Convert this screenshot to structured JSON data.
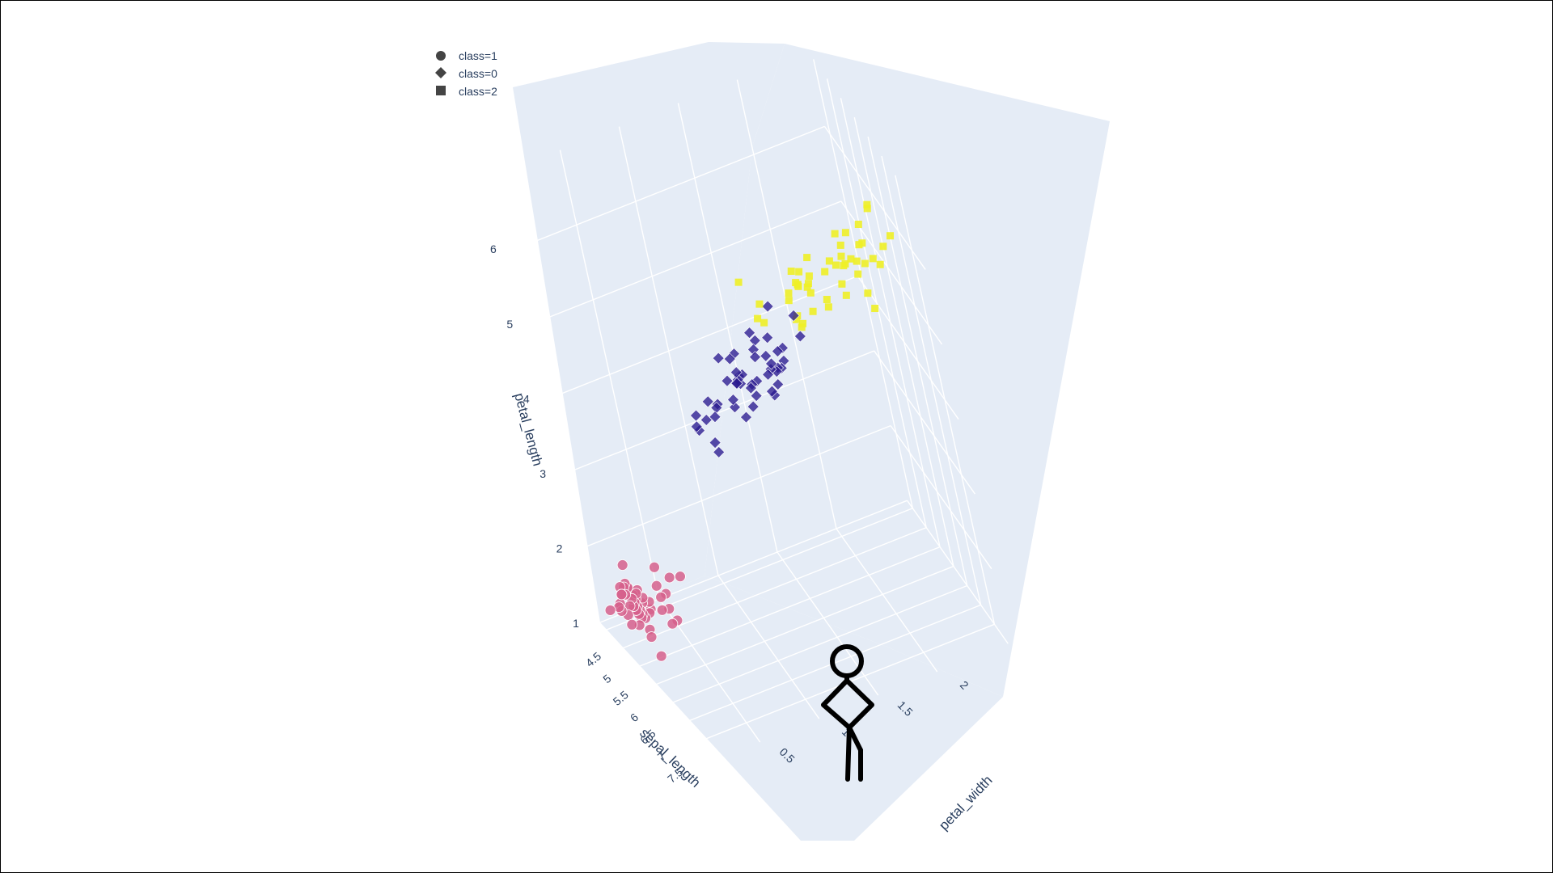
{
  "chart_data": {
    "type": "scatter3d",
    "axes": {
      "x": {
        "title": "sepal_length",
        "ticks": [
          "4.5",
          "5",
          "5.5",
          "6",
          "6.5",
          "7",
          "7.5"
        ]
      },
      "y": {
        "title": "petal_width",
        "ticks": [
          "0.5",
          "1",
          "1.5",
          "2"
        ]
      },
      "z": {
        "title": "petal_length",
        "ticks": [
          "1",
          "2",
          "3",
          "4",
          "5",
          "6"
        ]
      }
    },
    "legend": {
      "placement": "top-left",
      "entries": [
        {
          "label": "class=1",
          "symbol": "circle"
        },
        {
          "label": "class=0",
          "symbol": "diamond"
        },
        {
          "label": "class=2",
          "symbol": "square"
        }
      ]
    },
    "series": [
      {
        "class": "class=1",
        "symbol": "circle",
        "color": "#d6608c",
        "points": [
          [
            5.1,
            0.2,
            1.4
          ],
          [
            4.9,
            0.2,
            1.4
          ],
          [
            4.7,
            0.2,
            1.3
          ],
          [
            4.6,
            0.2,
            1.5
          ],
          [
            5.0,
            0.2,
            1.4
          ],
          [
            5.4,
            0.4,
            1.7
          ],
          [
            4.6,
            0.3,
            1.4
          ],
          [
            5.0,
            0.2,
            1.5
          ],
          [
            4.4,
            0.2,
            1.4
          ],
          [
            4.9,
            0.1,
            1.5
          ],
          [
            5.4,
            0.2,
            1.5
          ],
          [
            4.8,
            0.2,
            1.6
          ],
          [
            4.8,
            0.1,
            1.4
          ],
          [
            4.3,
            0.1,
            1.1
          ],
          [
            5.8,
            0.2,
            1.2
          ],
          [
            5.7,
            0.4,
            1.5
          ],
          [
            5.4,
            0.4,
            1.3
          ],
          [
            5.1,
            0.3,
            1.4
          ],
          [
            5.7,
            0.3,
            1.7
          ],
          [
            5.1,
            0.3,
            1.5
          ],
          [
            5.4,
            0.2,
            1.7
          ],
          [
            5.1,
            0.4,
            1.5
          ],
          [
            4.6,
            0.2,
            1.0
          ],
          [
            5.1,
            0.5,
            1.7
          ],
          [
            4.8,
            0.2,
            1.9
          ],
          [
            5.0,
            0.2,
            1.6
          ],
          [
            5.0,
            0.4,
            1.6
          ],
          [
            5.2,
            0.2,
            1.5
          ],
          [
            5.2,
            0.2,
            1.4
          ],
          [
            4.7,
            0.2,
            1.6
          ],
          [
            4.8,
            0.2,
            1.6
          ],
          [
            5.4,
            0.4,
            1.5
          ],
          [
            5.2,
            0.1,
            1.5
          ],
          [
            5.5,
            0.2,
            1.4
          ],
          [
            4.9,
            0.2,
            1.5
          ],
          [
            5.0,
            0.2,
            1.2
          ],
          [
            5.5,
            0.2,
            1.3
          ],
          [
            4.9,
            0.1,
            1.4
          ],
          [
            4.4,
            0.2,
            1.3
          ],
          [
            5.1,
            0.2,
            1.5
          ],
          [
            5.0,
            0.3,
            1.3
          ],
          [
            4.5,
            0.3,
            1.3
          ],
          [
            4.4,
            0.2,
            1.3
          ],
          [
            5.0,
            0.6,
            1.6
          ],
          [
            5.1,
            0.4,
            1.9
          ],
          [
            4.8,
            0.3,
            1.4
          ],
          [
            5.1,
            0.2,
            1.6
          ],
          [
            4.6,
            0.2,
            1.4
          ],
          [
            5.3,
            0.2,
            1.5
          ],
          [
            5.0,
            0.2,
            1.4
          ]
        ]
      },
      {
        "class": "class=0",
        "symbol": "diamond",
        "color": "#2a1a8f",
        "points": [
          [
            7.0,
            1.4,
            4.7
          ],
          [
            6.4,
            1.5,
            4.5
          ],
          [
            6.9,
            1.5,
            4.9
          ],
          [
            5.5,
            1.3,
            4.0
          ],
          [
            6.5,
            1.5,
            4.6
          ],
          [
            5.7,
            1.3,
            4.5
          ],
          [
            6.3,
            1.6,
            4.7
          ],
          [
            4.9,
            1.0,
            3.3
          ],
          [
            6.6,
            1.3,
            4.6
          ],
          [
            5.2,
            1.4,
            3.9
          ],
          [
            5.0,
            1.0,
            3.5
          ],
          [
            5.9,
            1.5,
            4.2
          ],
          [
            6.0,
            1.0,
            4.0
          ],
          [
            6.1,
            1.4,
            4.7
          ],
          [
            5.6,
            1.3,
            3.6
          ],
          [
            6.7,
            1.4,
            4.4
          ],
          [
            5.6,
            1.5,
            4.5
          ],
          [
            5.8,
            1.0,
            4.1
          ],
          [
            6.2,
            1.5,
            4.5
          ],
          [
            5.6,
            1.1,
            3.9
          ],
          [
            5.9,
            1.8,
            4.8
          ],
          [
            6.1,
            1.3,
            4.0
          ],
          [
            6.3,
            1.5,
            4.9
          ],
          [
            6.1,
            1.2,
            4.7
          ],
          [
            6.4,
            1.3,
            4.3
          ],
          [
            6.6,
            1.4,
            4.4
          ],
          [
            6.8,
            1.4,
            4.8
          ],
          [
            6.7,
            1.7,
            5.0
          ],
          [
            6.0,
            1.5,
            4.5
          ],
          [
            5.7,
            1.0,
            3.5
          ],
          [
            5.5,
            1.1,
            3.8
          ],
          [
            5.5,
            1.0,
            3.7
          ],
          [
            5.8,
            1.2,
            3.9
          ],
          [
            6.0,
            1.6,
            5.1
          ],
          [
            5.4,
            1.5,
            4.5
          ],
          [
            6.0,
            1.6,
            4.5
          ],
          [
            6.7,
            1.5,
            4.7
          ],
          [
            6.3,
            1.3,
            4.4
          ],
          [
            5.6,
            1.3,
            4.1
          ],
          [
            5.5,
            1.3,
            4.0
          ],
          [
            5.5,
            1.2,
            4.4
          ],
          [
            6.1,
            1.4,
            4.6
          ],
          [
            5.8,
            1.2,
            4.0
          ],
          [
            5.0,
            1.0,
            3.3
          ],
          [
            5.6,
            1.3,
            4.2
          ],
          [
            5.7,
            1.2,
            4.2
          ],
          [
            5.7,
            1.3,
            4.2
          ],
          [
            6.2,
            1.3,
            4.3
          ],
          [
            5.1,
            1.1,
            3.0
          ],
          [
            5.7,
            1.3,
            4.1
          ]
        ]
      },
      {
        "class": "class=2",
        "symbol": "square",
        "color": "#eef027",
        "points": [
          [
            6.3,
            2.5,
            6.0
          ],
          [
            5.8,
            1.9,
            5.1
          ],
          [
            7.1,
            2.1,
            5.9
          ],
          [
            6.3,
            1.8,
            5.6
          ],
          [
            6.5,
            2.2,
            5.8
          ],
          [
            7.6,
            2.1,
            6.6
          ],
          [
            4.9,
            1.7,
            4.5
          ],
          [
            7.3,
            1.8,
            6.3
          ],
          [
            6.7,
            1.8,
            5.8
          ],
          [
            7.2,
            2.5,
            6.1
          ],
          [
            6.5,
            2.0,
            5.1
          ],
          [
            6.4,
            1.9,
            5.3
          ],
          [
            6.8,
            2.1,
            5.5
          ],
          [
            5.7,
            2.0,
            5.0
          ],
          [
            5.8,
            2.4,
            5.1
          ],
          [
            6.4,
            2.3,
            5.3
          ],
          [
            6.5,
            1.8,
            5.5
          ],
          [
            7.7,
            2.2,
            6.7
          ],
          [
            7.7,
            2.3,
            6.9
          ],
          [
            6.0,
            1.5,
            5.0
          ],
          [
            6.9,
            2.3,
            5.7
          ],
          [
            5.6,
            2.0,
            4.9
          ],
          [
            7.7,
            2.0,
            6.7
          ],
          [
            6.3,
            1.8,
            4.9
          ],
          [
            6.7,
            2.1,
            5.7
          ],
          [
            7.2,
            1.8,
            6.0
          ],
          [
            6.2,
            1.8,
            4.8
          ],
          [
            6.1,
            1.8,
            4.9
          ],
          [
            6.4,
            2.1,
            5.6
          ],
          [
            7.2,
            1.6,
            5.8
          ],
          [
            7.4,
            1.9,
            6.1
          ],
          [
            7.9,
            2.0,
            6.4
          ],
          [
            6.4,
            2.2,
            5.6
          ],
          [
            6.3,
            1.5,
            5.1
          ],
          [
            6.1,
            1.4,
            5.6
          ],
          [
            7.7,
            2.3,
            6.1
          ],
          [
            6.3,
            2.4,
            5.6
          ],
          [
            6.4,
            1.8,
            5.5
          ],
          [
            6.0,
            1.8,
            4.8
          ],
          [
            6.9,
            2.1,
            5.4
          ],
          [
            6.7,
            2.4,
            5.6
          ],
          [
            6.9,
            2.3,
            5.1
          ],
          [
            5.8,
            1.9,
            5.1
          ],
          [
            6.8,
            2.3,
            5.9
          ],
          [
            6.7,
            2.5,
            5.7
          ],
          [
            6.7,
            2.3,
            5.2
          ],
          [
            6.3,
            1.9,
            5.0
          ],
          [
            6.5,
            2.0,
            5.2
          ],
          [
            6.2,
            2.3,
            5.4
          ],
          [
            5.9,
            1.8,
            5.1
          ]
        ]
      }
    ],
    "grid": true,
    "background": "#e5ecf6",
    "grid_color": "#ffffff"
  },
  "overlay": {
    "icon": "stick-figure-icon"
  }
}
